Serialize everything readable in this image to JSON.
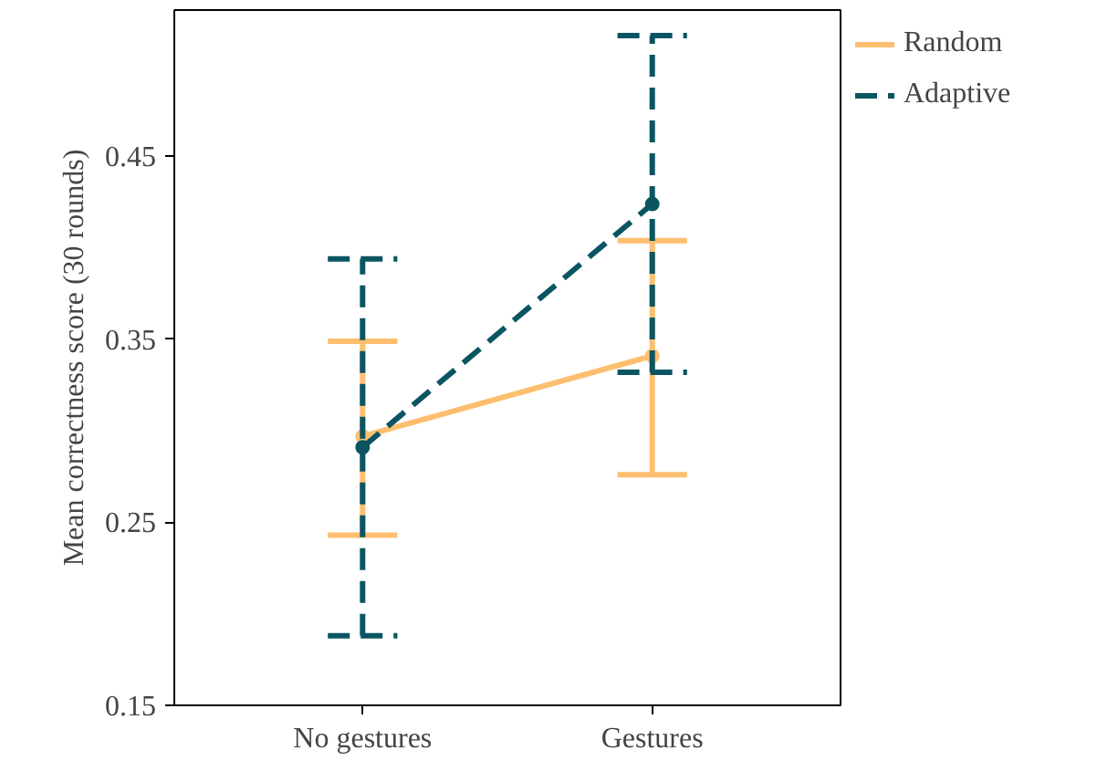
{
  "chart_data": {
    "type": "line",
    "ylabel": "Mean correctness score (30 rounds)",
    "categories": [
      "No gestures",
      "Gestures"
    ],
    "series": [
      {
        "name": "Random",
        "color": "#fdbf6f",
        "values": [
          0.297,
          0.341
        ],
        "errors": [
          [
            0.243,
            0.349
          ],
          [
            0.276,
            0.404
          ]
        ],
        "line_style": "solid"
      },
      {
        "name": "Adaptive",
        "color": "#0b5563",
        "values": [
          0.291,
          0.424
        ],
        "errors": [
          [
            0.188,
            0.394
          ],
          [
            0.332,
            0.516
          ]
        ],
        "line_style": "dashed"
      }
    ],
    "ylim": [
      0.15,
      0.53
    ],
    "yticks": [
      0.15,
      0.25,
      0.35,
      0.45
    ],
    "grid": false,
    "legend": "top right",
    "marker": "circle"
  }
}
